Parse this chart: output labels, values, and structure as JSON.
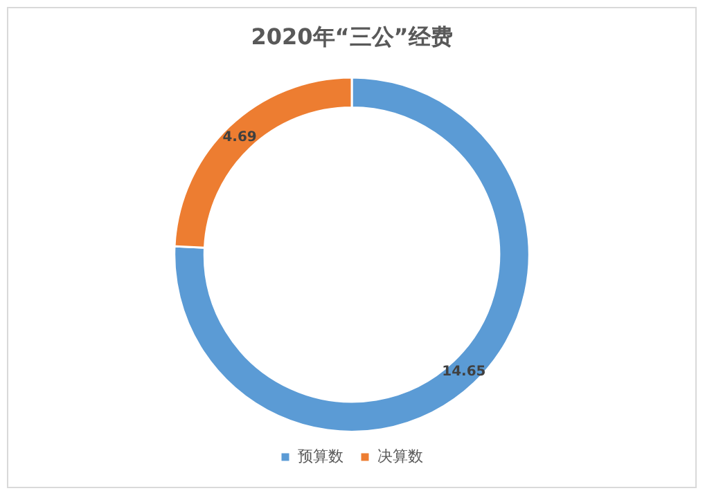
{
  "chart_data": {
    "type": "donut",
    "title": "2020年“三公”经费",
    "categories": [
      "预算数",
      "决算数"
    ],
    "values": [
      14.65,
      4.69
    ],
    "colors": [
      "#5b9bd5",
      "#ed7d31"
    ],
    "data_labels": true,
    "legend": "bottom"
  }
}
